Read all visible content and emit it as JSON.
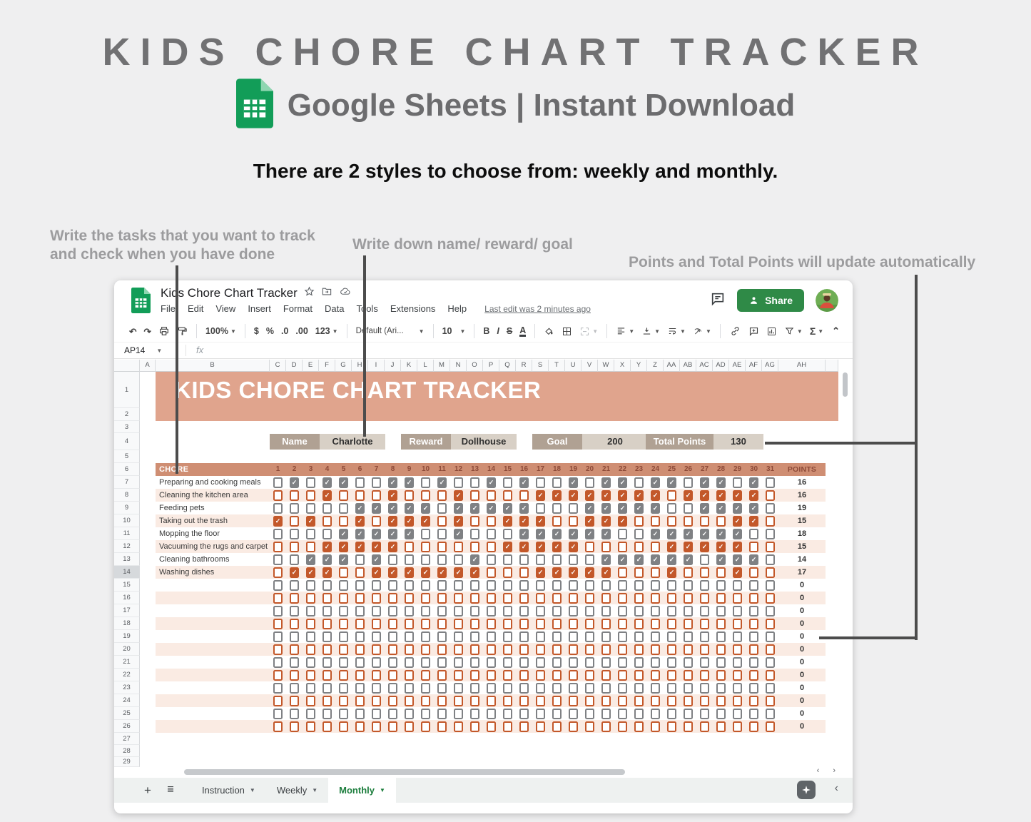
{
  "header": {
    "title": "KIDS CHORE CHART TRACKER",
    "subtitle": "Google Sheets | Instant Download",
    "tagline": "There are 2 styles to choose from: weekly and monthly."
  },
  "annotations": {
    "left_line1": "Write the tasks that you want to track",
    "left_line2": "and check when you have done",
    "middle": "Write down name/ reward/ goal",
    "right": "Points and Total Points will update automatically"
  },
  "app": {
    "doc_title": "Kids Chore Chart Tracker",
    "menu": [
      "File",
      "Edit",
      "View",
      "Insert",
      "Format",
      "Data",
      "Tools",
      "Extensions",
      "Help"
    ],
    "last_edit": "Last edit was 2 minutes ago",
    "share_label": "Share",
    "toolbar": {
      "zoom": "100%",
      "currency": "$",
      "percent": "%",
      "decimal_decrease": ".0",
      "decimal_increase": ".00",
      "number_format": "123",
      "font": "Default (Ari...",
      "font_size": "10",
      "bold": "B",
      "italic": "I",
      "strikethrough": "S",
      "text_color": "A",
      "functions": "Σ"
    },
    "name_box": "AP14",
    "formula_label": "fx",
    "tabs": [
      {
        "label": "Instruction",
        "active": false
      },
      {
        "label": "Weekly",
        "active": false
      },
      {
        "label": "Monthly",
        "active": true
      }
    ]
  },
  "sheet": {
    "column_letters": [
      "A",
      "B",
      "C",
      "D",
      "E",
      "F",
      "G",
      "H",
      "I",
      "J",
      "K",
      "L",
      "M",
      "N",
      "O",
      "P",
      "Q",
      "R",
      "S",
      "T",
      "U",
      "V",
      "W",
      "X",
      "Y",
      "Z",
      "AA",
      "AB",
      "AC",
      "AD",
      "AE",
      "AF",
      "AG",
      "AH"
    ],
    "row_numbers": [
      1,
      2,
      3,
      4,
      5,
      6,
      7,
      8,
      9,
      10,
      11,
      12,
      13,
      14,
      15,
      16,
      17,
      18,
      19,
      20,
      21,
      22,
      23,
      24,
      25,
      26,
      27,
      28,
      29
    ],
    "banner_title": "KIDS CHORE CHART TRACKER",
    "info": [
      {
        "label": "Name",
        "value": "Charlotte"
      },
      {
        "label": "Reward",
        "value": "Dollhouse"
      },
      {
        "label": "Goal",
        "value": "200"
      },
      {
        "label": "Total Points",
        "value": "130"
      }
    ],
    "table": {
      "chore_header": "CHORE",
      "days": [
        1,
        2,
        3,
        4,
        5,
        6,
        7,
        8,
        9,
        10,
        11,
        12,
        13,
        14,
        15,
        16,
        17,
        18,
        19,
        20,
        21,
        22,
        23,
        24,
        25,
        26,
        27,
        28,
        29,
        30,
        31
      ],
      "points_header": "POINTS",
      "rows": [
        {
          "chore": "Preparing and cooking meals",
          "color": "gray",
          "checks": "0101100110100101001011011011010",
          "points": 16
        },
        {
          "chore": "Cleaning the kitchen area",
          "color": "orange",
          "checks": "0001000100010000111111110111110",
          "points": 16
        },
        {
          "chore": "Feeding pets",
          "color": "gray",
          "checks": "0000011111011111000111110011110",
          "points": 19
        },
        {
          "chore": "Taking out the trash",
          "color": "orange",
          "checks": "1010010111010011100111000000110",
          "points": 15
        },
        {
          "chore": "Mopping the floor",
          "color": "gray",
          "checks": "0000111110010001111110011111100",
          "points": 18
        },
        {
          "chore": "Vacuuming the rugs and carpet",
          "color": "orange",
          "checks": "0001111100000011111000001111100",
          "points": 15
        },
        {
          "chore": "Cleaning bathrooms",
          "color": "gray",
          "checks": "0011101000001000000011111101110",
          "points": 14
        },
        {
          "chore": "Washing dishes",
          "color": "orange",
          "checks": "0111001111111000111110001000100",
          "points": 17
        },
        {
          "chore": "",
          "color": "gray",
          "checks": "0000000000000000000000000000000",
          "points": 0
        },
        {
          "chore": "",
          "color": "orange",
          "checks": "0000000000000000000000000000000",
          "points": 0
        },
        {
          "chore": "",
          "color": "gray",
          "checks": "0000000000000000000000000000000",
          "points": 0
        },
        {
          "chore": "",
          "color": "orange",
          "checks": "0000000000000000000000000000000",
          "points": 0
        },
        {
          "chore": "",
          "color": "gray",
          "checks": "0000000000000000000000000000000",
          "points": 0
        },
        {
          "chore": "",
          "color": "orange",
          "checks": "0000000000000000000000000000000",
          "points": 0
        },
        {
          "chore": "",
          "color": "gray",
          "checks": "0000000000000000000000000000000",
          "points": 0
        },
        {
          "chore": "",
          "color": "orange",
          "checks": "0000000000000000000000000000000",
          "points": 0
        },
        {
          "chore": "",
          "color": "gray",
          "checks": "0000000000000000000000000000000",
          "points": 0
        },
        {
          "chore": "",
          "color": "orange",
          "checks": "0000000000000000000000000000000",
          "points": 0
        },
        {
          "chore": "",
          "color": "gray",
          "checks": "0000000000000000000000000000000",
          "points": 0
        },
        {
          "chore": "",
          "color": "orange",
          "checks": "0000000000000000000000000000000",
          "points": 0
        }
      ]
    }
  },
  "colors": {
    "banner": "#e0a48d",
    "chore_header": "#cf8e73",
    "stripe": "#faebe3",
    "check_orange": "#c3582a",
    "check_gray": "#7f8184",
    "day_maroon": "#8d4a38",
    "label_bg": "#b0a193",
    "value_bg": "#d8d0c6",
    "share_green": "#2f8a47",
    "sheets_green": "#129d58",
    "tab_green": "#1b7d3c"
  }
}
